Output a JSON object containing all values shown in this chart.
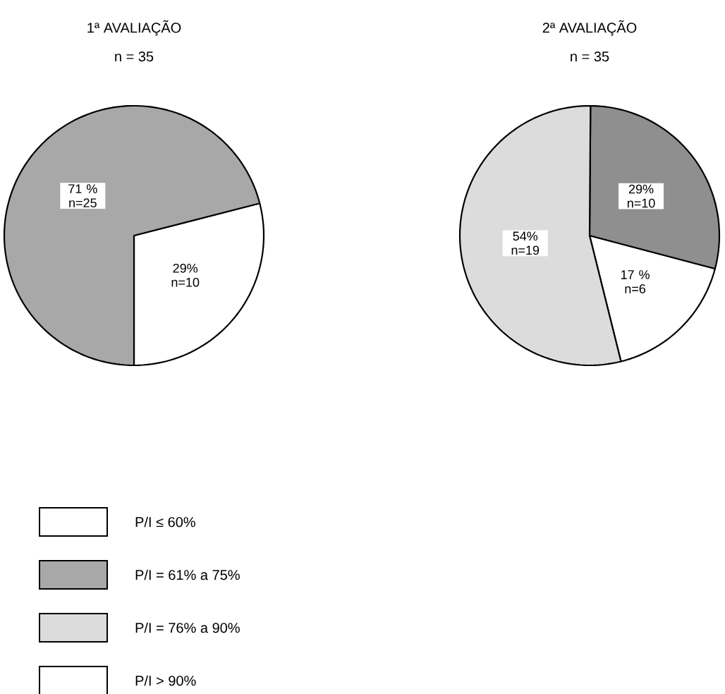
{
  "chart_data": [
    {
      "type": "pie",
      "title": "1ª AVALIAÇÃO",
      "subtitle": "n = 35",
      "categories": [
        "P/I ≤ 60%",
        "P/I = 61% a 75%",
        "P/I = 76% a 90%",
        "P/I > 90%"
      ],
      "values": [
        29,
        71,
        0,
        0
      ],
      "colors": [
        "#ffffff",
        "#a8a8a8",
        "#dcdcdc",
        "#ffffff"
      ],
      "value_labels": [
        "29% n=10",
        "71 % n=25",
        null,
        null
      ],
      "legend": "bottom"
    },
    {
      "type": "pie",
      "title": "2ª AVALIAÇÃO",
      "subtitle": "n = 35",
      "categories": [
        null,
        null,
        null,
        null
      ],
      "values": [
        17,
        29,
        54,
        0
      ],
      "colors": [
        "#ffffff",
        "#8f8f8f",
        "#dcdcdc",
        "#ffffff"
      ],
      "value_labels": [
        "17 % n=6",
        "29% n=10",
        "54% n=19",
        null
      ],
      "legend": false
    }
  ]
}
